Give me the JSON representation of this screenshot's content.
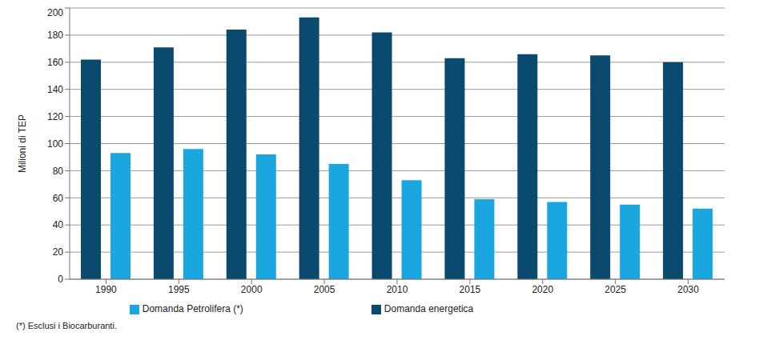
{
  "chart_data": {
    "type": "bar",
    "y_label": "Milioni di TEP",
    "categories": [
      "1990",
      "1995",
      "2000",
      "2005",
      "2010",
      "2015",
      "2020",
      "2025",
      "2030"
    ],
    "series": [
      {
        "name": "Domanda energetica",
        "color": "#0b4a6f",
        "values": [
          162,
          171,
          184,
          193,
          182,
          163,
          166,
          165,
          160
        ]
      },
      {
        "name": "Domanda Petrolifera (*)",
        "color": "#1aa7e0",
        "values": [
          93,
          96,
          92,
          85,
          73,
          59,
          57,
          55,
          52
        ]
      }
    ],
    "ylim": [
      0,
      200
    ],
    "yticks": [
      0,
      20,
      40,
      60,
      80,
      100,
      120,
      140,
      160,
      180,
      200
    ],
    "grid": true,
    "legend": "bottom",
    "annotations": [
      "(*) Esclusi i Biocarburanti."
    ]
  }
}
